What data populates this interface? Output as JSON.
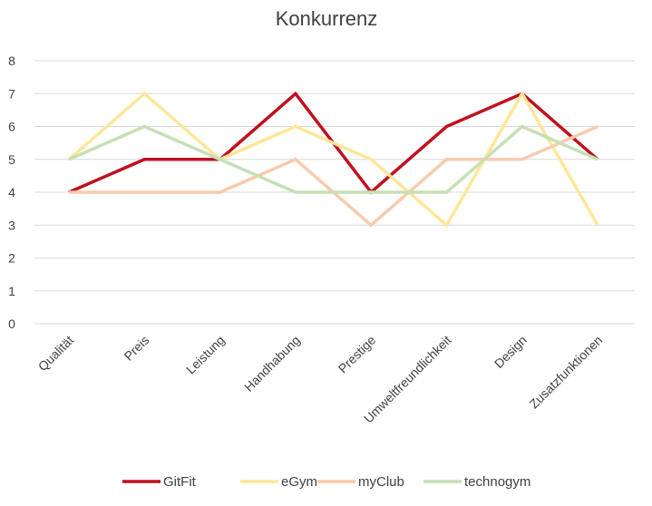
{
  "chart_data": {
    "type": "line",
    "title": "Konkurrenz",
    "xlabel": "",
    "ylabel": "",
    "categories": [
      "Qualität",
      "Preis",
      "Leistung",
      "Handhabung",
      "Prestige",
      "Umweltfreundlichkeit",
      "Design",
      "Zusatzfunktionen"
    ],
    "ylim": [
      0,
      8
    ],
    "yticks": [
      0,
      1,
      2,
      3,
      4,
      5,
      6,
      7,
      8
    ],
    "grid": true,
    "legend_position": "bottom",
    "series": [
      {
        "name": "GitFit",
        "color": "#c0101d",
        "values": [
          4,
          5,
          5,
          7,
          4,
          6,
          7,
          5
        ]
      },
      {
        "name": "eGym",
        "color": "#ffe699",
        "values": [
          5,
          7,
          5,
          6,
          5,
          3,
          7,
          3
        ]
      },
      {
        "name": "myClub",
        "color": "#f8cbad",
        "values": [
          4,
          4,
          4,
          5,
          3,
          5,
          5,
          6
        ]
      },
      {
        "name": "technogym",
        "color": "#c5e0b4",
        "values": [
          5,
          6,
          5,
          4,
          4,
          4,
          6,
          5
        ]
      }
    ]
  }
}
